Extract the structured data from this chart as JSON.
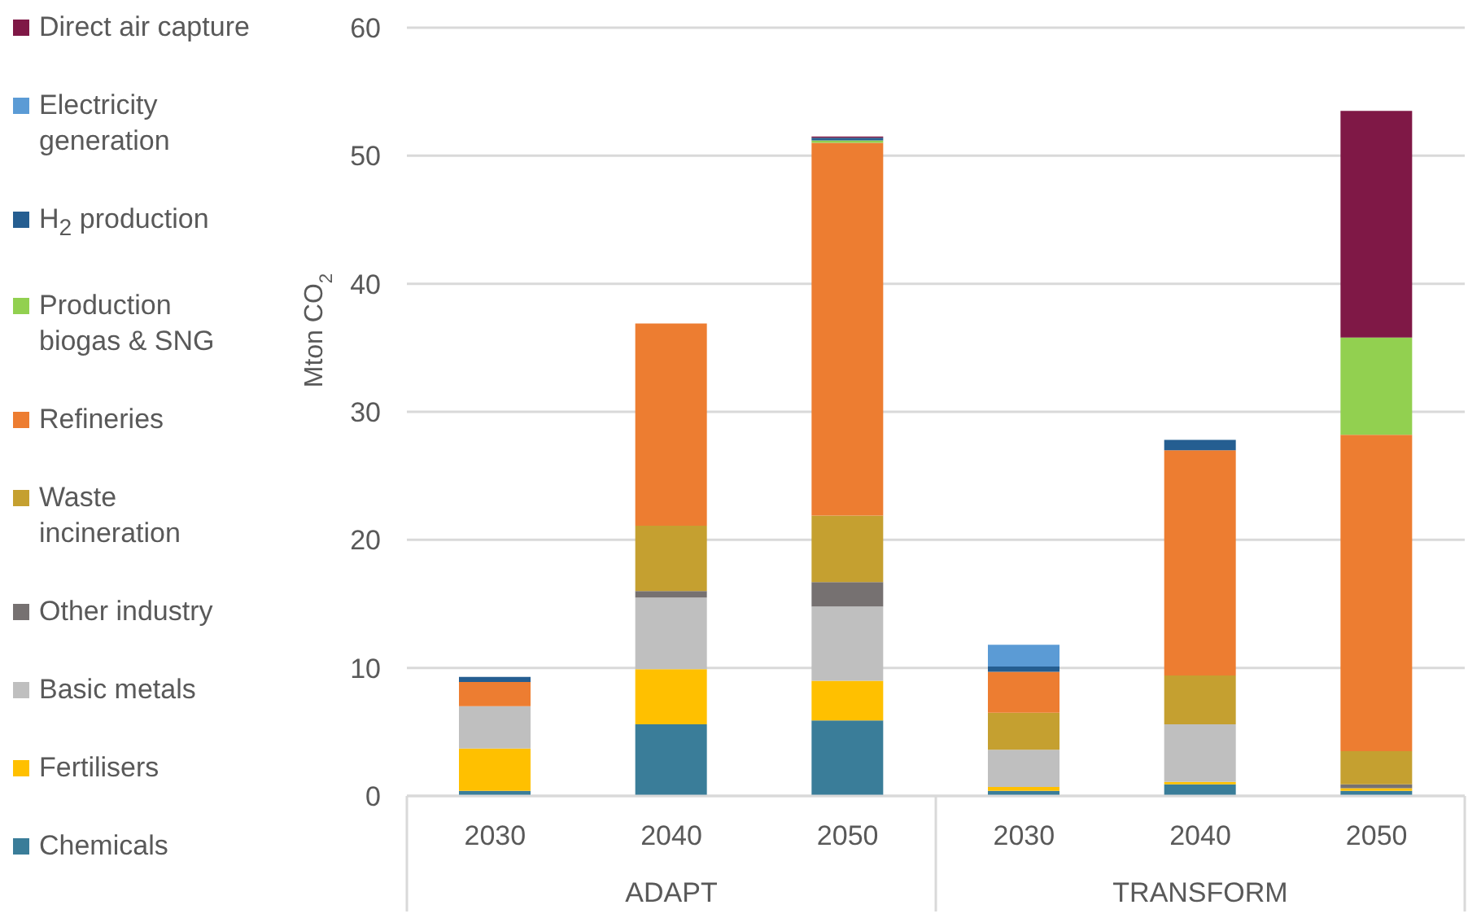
{
  "chart_data": {
    "type": "bar",
    "stacked": true,
    "ylabel": "Mton CO$_{2}$",
    "categories": [
      "2030",
      "2040",
      "2050",
      "2030",
      "2040",
      "2050"
    ],
    "annotations": [
      "ADAPT",
      "TRANSFORM"
    ],
    "series": [
      {
        "name": "Chemicals",
        "color": "#3a7d99",
        "values": [
          0.4,
          5.6,
          5.9,
          0.4,
          0.9,
          0.4
        ]
      },
      {
        "name": "Fertilisers",
        "color": "#ffc000",
        "values": [
          3.3,
          4.3,
          3.1,
          0.3,
          0.2,
          0.2
        ]
      },
      {
        "name": "Basic metals",
        "color": "#bfbfbf",
        "values": [
          3.3,
          5.6,
          5.8,
          2.9,
          4.5,
          0
        ]
      },
      {
        "name": "Other industry",
        "color": "#767171",
        "values": [
          0,
          0.5,
          1.9,
          0,
          0,
          0.3
        ]
      },
      {
        "name": "Waste incineration",
        "color": "#c5a030",
        "values": [
          0,
          5.1,
          5.2,
          2.9,
          3.8,
          2.6
        ]
      },
      {
        "name": "Refineries",
        "color": "#ed7d31",
        "values": [
          1.9,
          15.8,
          29.1,
          3.2,
          17.6,
          24.7
        ]
      },
      {
        "name": "Production biogas & SNG",
        "color": "#92d050",
        "values": [
          0,
          0,
          0.2,
          0,
          0,
          7.6
        ]
      },
      {
        "name": "H$_{2}$ production",
        "color": "#255e91",
        "values": [
          0.4,
          0,
          0.2,
          0.4,
          0.8,
          0
        ]
      },
      {
        "name": "Electricity generation",
        "color": "#5b9bd5",
        "values": [
          0,
          0,
          0,
          1.7,
          0,
          0
        ]
      },
      {
        "name": "Direct air capture",
        "color": "#7f1846",
        "values": [
          0,
          0,
          0.1,
          0,
          0,
          17.7
        ]
      }
    ],
    "ylim": [
      0,
      60
    ],
    "yticks": [
      0,
      10,
      20,
      30,
      40,
      50,
      60
    ],
    "grid": "y",
    "legend": "left"
  }
}
